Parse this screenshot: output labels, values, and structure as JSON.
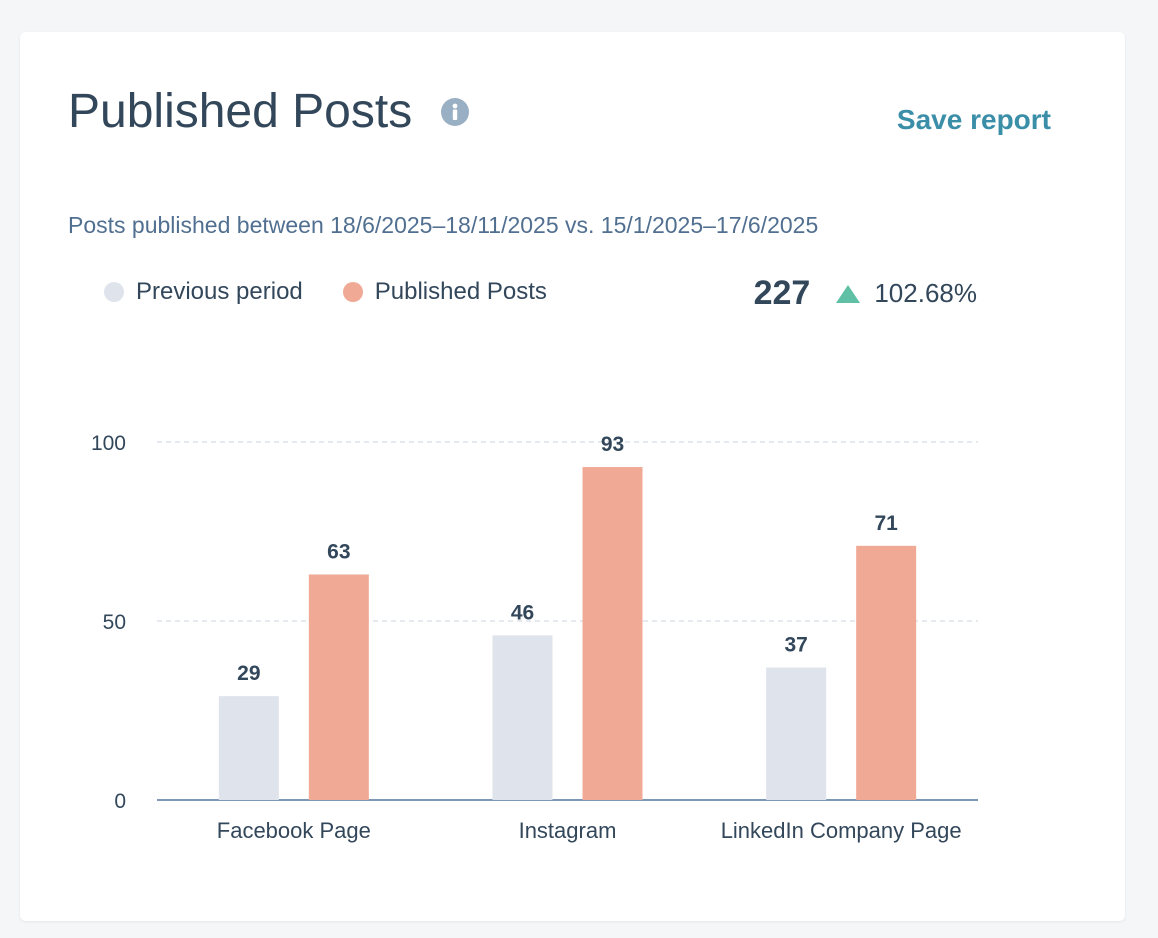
{
  "header": {
    "title": "Published Posts",
    "info_icon": "info-circle-icon",
    "save_label": "Save report"
  },
  "subtitle": "Posts published between 18/6/2025–18/11/2025 vs. 15/1/2025–17/6/2025",
  "summary": {
    "total": "227",
    "change": "102.68%",
    "direction": "up",
    "arrow_icon": "triangle-up-icon"
  },
  "colors": {
    "previous": "#dfe3eb",
    "current": "#f0a994",
    "positive": "#5fc0a6",
    "axis": "#7c98b6",
    "text": "#33475b",
    "link": "#3b8ea8"
  },
  "chart_data": {
    "type": "bar",
    "title": "Published Posts",
    "categories": [
      "Facebook Page",
      "Instagram",
      "LinkedIn Company Page"
    ],
    "series": [
      {
        "name": "Previous period",
        "values": [
          29,
          46,
          37
        ]
      },
      {
        "name": "Published Posts",
        "values": [
          63,
          93,
          71
        ]
      }
    ],
    "ylim": [
      0,
      100
    ],
    "yticks": [
      "0",
      "50",
      "100"
    ],
    "grid": true,
    "legend": "top-left",
    "xlabel": "",
    "ylabel": ""
  }
}
